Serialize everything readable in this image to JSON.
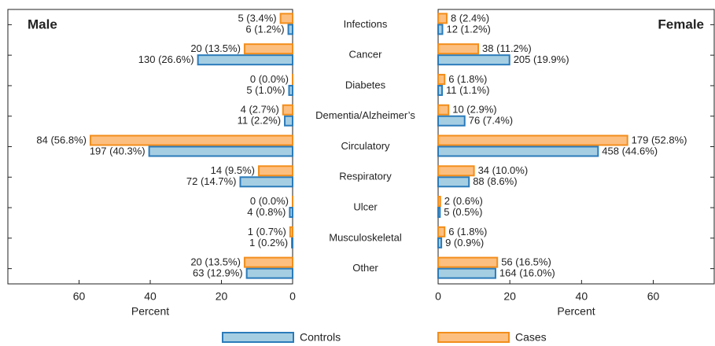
{
  "chart_data": {
    "type": "bar",
    "categories": [
      "Infections",
      "Cancer",
      "Diabetes",
      "Dementia/Alzheimer’s",
      "Circulatory",
      "Respiratory",
      "Ulcer",
      "Musculoskeletal",
      "Other"
    ],
    "series": [
      {
        "name": "Controls",
        "color": "#2b7bba",
        "fill": "#a6cee3"
      },
      {
        "name": "Cases",
        "color": "#f28e1c",
        "fill": "#fdbf80"
      }
    ],
    "panels": [
      {
        "title": "Male",
        "xlabel": "Percent",
        "xlim": [
          0,
          80
        ],
        "xticks": [
          60,
          40,
          20,
          0
        ],
        "reversed": true,
        "series": [
          {
            "values": [
              1.2,
              26.6,
              1.0,
              2.2,
              40.3,
              14.7,
              0.8,
              0.2,
              12.9
            ],
            "value_labels": [
              "6 (1.2%)",
              "130 (26.6%)",
              "5 (1.0%)",
              "11 (2.2%)",
              "197 (40.3%)",
              "72 (14.7%)",
              "4 (0.8%)",
              "1 (0.2%)",
              "63 (12.9%)"
            ]
          },
          {
            "values": [
              3.4,
              13.5,
              0.0,
              2.7,
              56.8,
              9.5,
              0.0,
              0.7,
              13.5
            ],
            "value_labels": [
              "5 (3.4%)",
              "20 (13.5%)",
              "0 (0.0%)",
              "4 (2.7%)",
              "84 (56.8%)",
              "14 (9.5%)",
              "0 (0.0%)",
              "1 (0.7%)",
              "20 (13.5%)"
            ]
          }
        ]
      },
      {
        "title": "Female",
        "xlabel": "Percent",
        "xlim": [
          0,
          77
        ],
        "xticks": [
          0,
          20,
          40,
          60
        ],
        "reversed": false,
        "series": [
          {
            "values": [
              1.2,
              19.9,
              1.1,
              7.4,
              44.6,
              8.6,
              0.5,
              0.9,
              16.0
            ],
            "value_labels": [
              "12 (1.2%)",
              "205 (19.9%)",
              "11 (1.1%)",
              "76 (7.4%)",
              "458 (44.6%)",
              "88 (8.6%)",
              "5 (0.5%)",
              "9 (0.9%)",
              "164 (16.0%)"
            ]
          },
          {
            "values": [
              2.4,
              11.2,
              1.8,
              2.9,
              52.8,
              10.0,
              0.6,
              1.8,
              16.5
            ],
            "value_labels": [
              "8 (2.4%)",
              "38 (11.2%)",
              "6 (1.8%)",
              "10 (2.9%)",
              "179 (52.8%)",
              "34 (10.0%)",
              "2 (0.6%)",
              "6 (1.8%)",
              "56 (16.5%)"
            ]
          }
        ]
      }
    ]
  }
}
